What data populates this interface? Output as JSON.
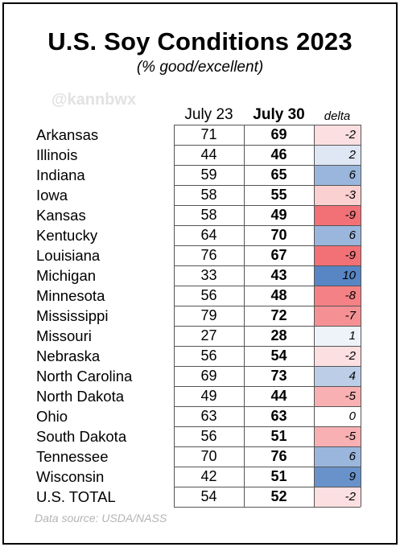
{
  "title": "U.S. Soy Conditions 2023",
  "subtitle": "(% good/excellent)",
  "watermark": "@kannbwx",
  "source": "Data source: USDA/NASS",
  "chart_data": {
    "type": "table",
    "columns": [
      "July 23",
      "July 30",
      "delta"
    ],
    "rows": [
      {
        "state": "Arkansas",
        "july23": 71,
        "july30": 69,
        "delta": -2
      },
      {
        "state": "Illinois",
        "july23": 44,
        "july30": 46,
        "delta": 2
      },
      {
        "state": "Indiana",
        "july23": 59,
        "july30": 65,
        "delta": 6
      },
      {
        "state": "Iowa",
        "july23": 58,
        "july30": 55,
        "delta": -3
      },
      {
        "state": "Kansas",
        "july23": 58,
        "july30": 49,
        "delta": -9
      },
      {
        "state": "Kentucky",
        "july23": 64,
        "july30": 70,
        "delta": 6
      },
      {
        "state": "Louisiana",
        "july23": 76,
        "july30": 67,
        "delta": -9
      },
      {
        "state": "Michigan",
        "july23": 33,
        "july30": 43,
        "delta": 10
      },
      {
        "state": "Minnesota",
        "july23": 56,
        "july30": 48,
        "delta": -8
      },
      {
        "state": "Mississippi",
        "july23": 79,
        "july30": 72,
        "delta": -7
      },
      {
        "state": "Missouri",
        "july23": 27,
        "july30": 28,
        "delta": 1
      },
      {
        "state": "Nebraska",
        "july23": 56,
        "july30": 54,
        "delta": -2
      },
      {
        "state": "North Carolina",
        "july23": 69,
        "july30": 73,
        "delta": 4
      },
      {
        "state": "North Dakota",
        "july23": 49,
        "july30": 44,
        "delta": -5
      },
      {
        "state": "Ohio",
        "july23": 63,
        "july30": 63,
        "delta": 0
      },
      {
        "state": "South Dakota",
        "july23": 56,
        "july30": 51,
        "delta": -5
      },
      {
        "state": "Tennessee",
        "july23": 70,
        "july30": 76,
        "delta": 6
      },
      {
        "state": "Wisconsin",
        "july23": 42,
        "july30": 51,
        "delta": 9
      },
      {
        "state": "U.S. TOTAL",
        "july23": 54,
        "july30": 52,
        "delta": -2
      }
    ],
    "delta_colors": {
      "positive": "#4f7fc1",
      "negative": "#f0595f",
      "zero": "#ffffff"
    }
  }
}
